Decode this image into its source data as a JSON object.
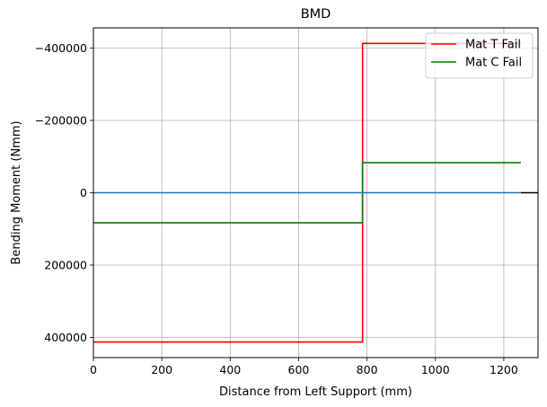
{
  "chart_data": {
    "type": "line",
    "title": "BMD",
    "xlabel": "Distance from Left Support (mm)",
    "ylabel": "Bending Moment (Nmm)",
    "xlim": [
      0,
      1300
    ],
    "ylim": [
      456000,
      -456000
    ],
    "y_inverted": true,
    "grid": true,
    "legend_position": "top-right",
    "x_ticks": [
      0,
      200,
      400,
      600,
      800,
      1000,
      1200
    ],
    "x_tick_labels": [
      "0",
      "200",
      "400",
      "600",
      "800",
      "1000",
      "1200"
    ],
    "y_ticks": [
      -400000,
      -200000,
      0,
      200000,
      400000
    ],
    "y_tick_labels": [
      "−400000",
      "−200000",
      "0",
      "200000",
      "400000"
    ],
    "series": [
      {
        "name": "Mat T Fail",
        "color": "#ff0000",
        "in_legend": true,
        "x": [
          0,
          787,
          787,
          1250
        ],
        "y": [
          413000,
          413000,
          -413000,
          -413000
        ]
      },
      {
        "name": "Mat C Fail",
        "color": "#008000",
        "in_legend": true,
        "x": [
          0,
          787,
          787,
          1250
        ],
        "y": [
          83000,
          83000,
          -83000,
          -83000
        ]
      },
      {
        "color": "#1f77b4",
        "in_legend": false,
        "x": [
          0,
          1250
        ],
        "y": [
          0,
          0
        ]
      },
      {
        "color": "#000000",
        "in_legend": false,
        "x": [
          1250,
          1300
        ],
        "y": [
          0,
          0
        ]
      }
    ]
  }
}
